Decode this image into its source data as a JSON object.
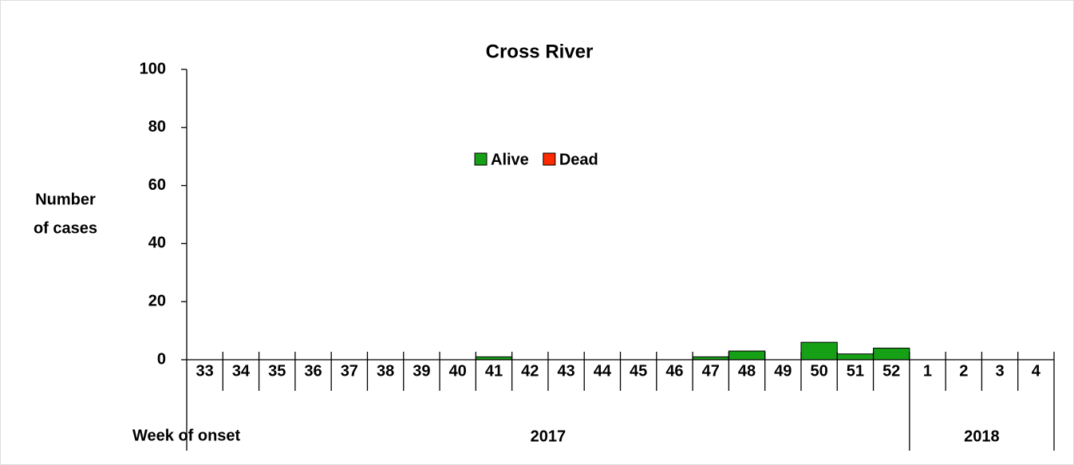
{
  "chart_data": {
    "type": "bar",
    "stacked": true,
    "title": "Cross River",
    "y_label": [
      "Number",
      "of cases"
    ],
    "x_label": "Week of onset",
    "categories": [
      "33",
      "34",
      "35",
      "36",
      "37",
      "38",
      "39",
      "40",
      "41",
      "42",
      "43",
      "44",
      "45",
      "46",
      "47",
      "48",
      "49",
      "50",
      "51",
      "52",
      "1",
      "2",
      "3",
      "4"
    ],
    "year_groups": [
      "2017",
      "2018"
    ],
    "series": [
      {
        "name": "Alive",
        "color": "#16a016",
        "values": [
          0,
          0,
          0,
          0,
          0,
          0,
          0,
          0,
          1,
          0,
          0,
          0,
          0,
          0,
          1,
          3,
          0,
          6,
          2,
          4,
          0,
          0,
          0,
          0
        ]
      },
      {
        "name": "Dead",
        "color": "#ff2a00",
        "values": [
          0,
          0,
          0,
          0,
          0,
          0,
          0,
          0,
          0,
          0,
          0,
          0,
          0,
          0,
          0,
          0,
          0,
          0,
          0,
          0,
          0,
          0,
          0,
          0
        ]
      }
    ],
    "ylim": [
      0,
      100
    ],
    "yticks": [
      0,
      20,
      40,
      60,
      80,
      100
    ],
    "grid": false,
    "legend": "upper center"
  }
}
